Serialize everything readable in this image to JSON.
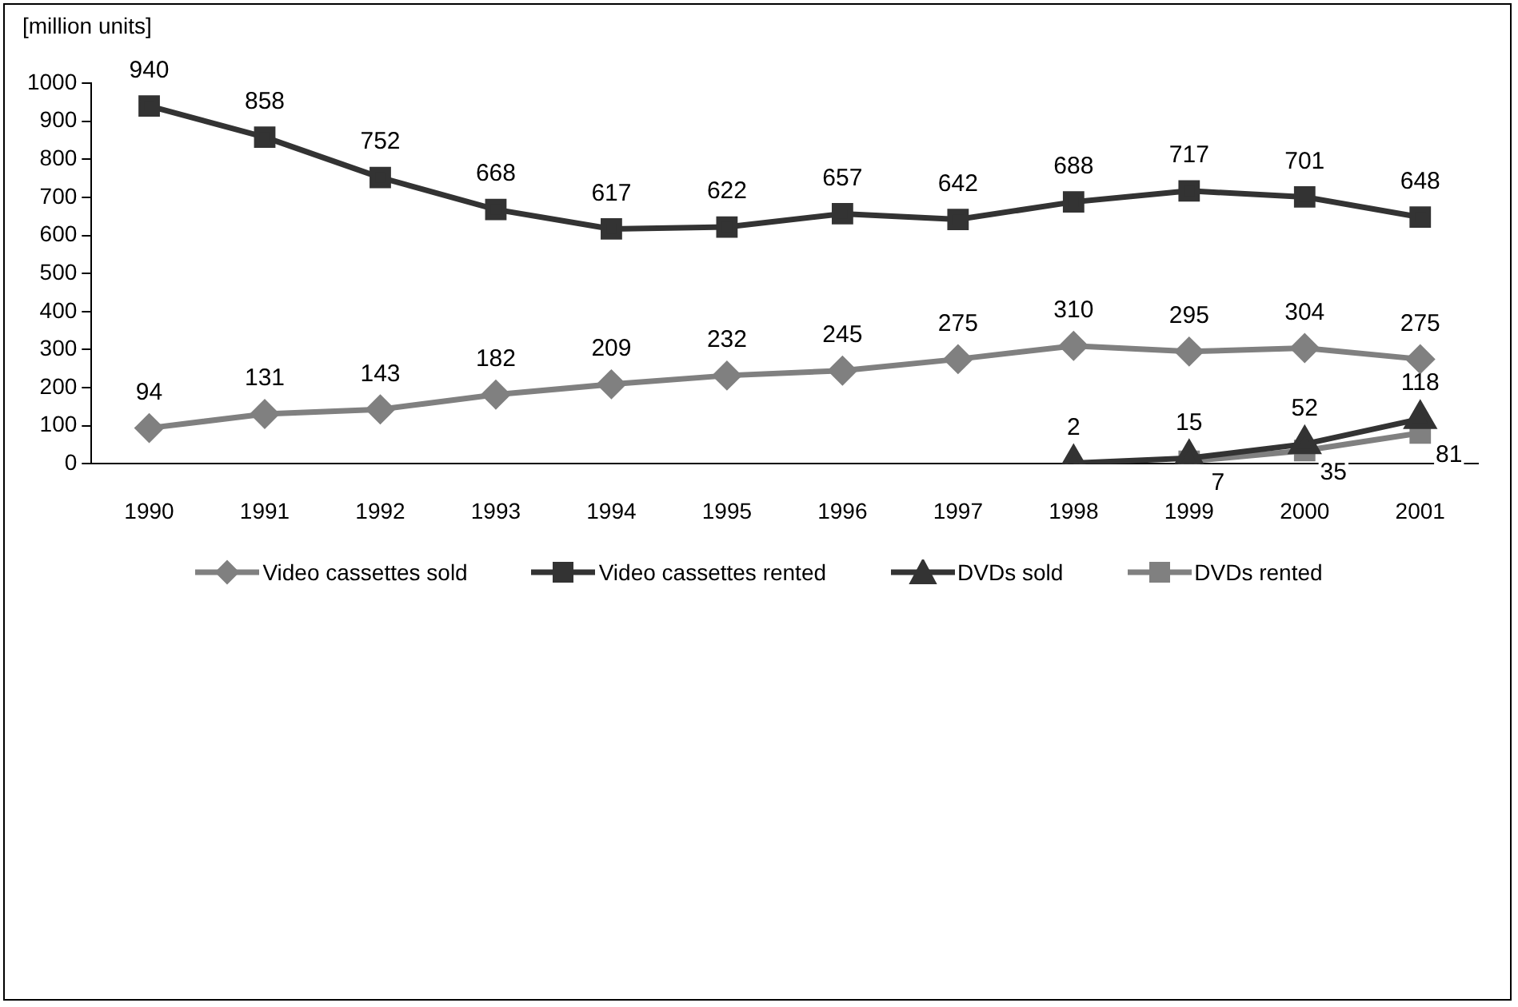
{
  "chart_data": {
    "type": "line",
    "ylabel": "[million units]",
    "categories": [
      "1990",
      "1991",
      "1992",
      "1993",
      "1994",
      "1995",
      "1996",
      "1997",
      "1998",
      "1999",
      "2000",
      "2001"
    ],
    "ylim": [
      0,
      1000
    ],
    "yticks": [
      0,
      100,
      200,
      300,
      400,
      500,
      600,
      700,
      800,
      900,
      1000
    ],
    "grid": false,
    "legend": "bottom",
    "data_labels": true,
    "series": [
      {
        "name": "Video cassettes sold",
        "color": "#808080",
        "marker": "diamond",
        "values": [
          94,
          131,
          143,
          182,
          209,
          232,
          245,
          275,
          310,
          295,
          304,
          275
        ]
      },
      {
        "name": "Video cassettes rented",
        "color": "#333333",
        "marker": "square",
        "values": [
          940,
          858,
          752,
          668,
          617,
          622,
          657,
          642,
          688,
          717,
          701,
          648
        ]
      },
      {
        "name": "DVDs sold",
        "color": "#333333",
        "marker": "triangle",
        "values": [
          null,
          null,
          null,
          null,
          null,
          null,
          null,
          null,
          2,
          15,
          52,
          118
        ]
      },
      {
        "name": "DVDs rented",
        "color": "#808080",
        "marker": "square",
        "values": [
          null,
          null,
          null,
          null,
          null,
          null,
          null,
          null,
          null,
          7,
          35,
          81
        ]
      }
    ]
  }
}
